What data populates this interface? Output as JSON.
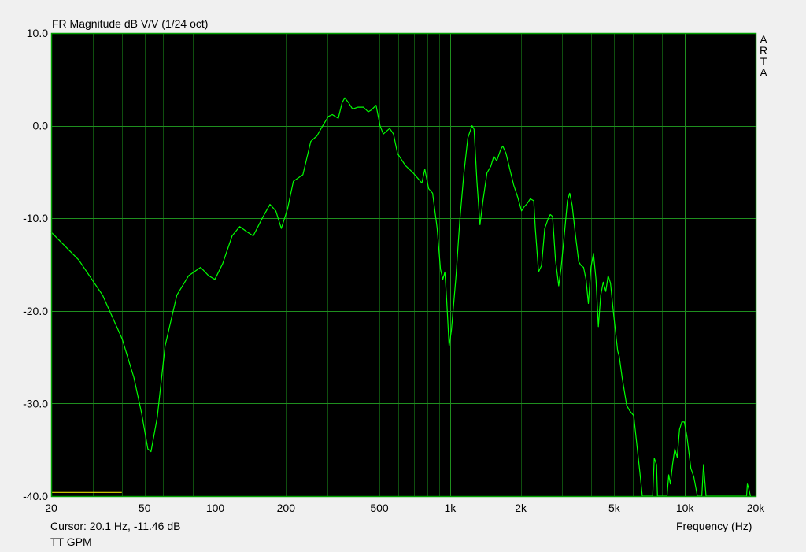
{
  "chart_data": {
    "type": "line",
    "title": "FR Magnitude dB V/V (1/24 oct)",
    "xlabel": "Frequency (Hz)",
    "ylabel": "",
    "xscale": "log",
    "xlim": [
      20,
      20000
    ],
    "ylim": [
      -40,
      10
    ],
    "grid": true,
    "yticks": [
      10,
      0,
      -10,
      -20,
      -30,
      -40
    ],
    "ytick_labels": [
      "10.0",
      "0.0",
      "-10.0",
      "-20.0",
      "-30.0",
      "-40.0"
    ],
    "xticks": [
      20,
      50,
      100,
      200,
      500,
      1000,
      2000,
      5000,
      10000,
      20000
    ],
    "xtick_labels": [
      "20",
      "50",
      "100",
      "200",
      "500",
      "1k",
      "2k",
      "5k",
      "10k",
      "20k"
    ],
    "watermark": "ARTA",
    "colors": {
      "background": "#000000",
      "grid_major": "#1f8f1f",
      "grid_minor": "#0f4f0f",
      "border": "#00a000",
      "trace": "#00ff00",
      "reference": "#e0e000"
    },
    "series": [
      {
        "color": "#00ff00",
        "points": [
          [
            20,
            -11.5
          ],
          [
            26.2,
            -14.5
          ],
          [
            33.1,
            -18.3
          ],
          [
            40.1,
            -23.0
          ],
          [
            45,
            -27.2
          ],
          [
            48.6,
            -31.1
          ],
          [
            51.6,
            -34.9
          ],
          [
            53.2,
            -35.2
          ],
          [
            56.6,
            -31.5
          ],
          [
            61.1,
            -23.8
          ],
          [
            68.6,
            -18.3
          ],
          [
            77,
            -16.2
          ],
          [
            86.6,
            -15.3
          ],
          [
            93.6,
            -16.2
          ],
          [
            99.6,
            -16.6
          ],
          [
            107.5,
            -14.9
          ],
          [
            117.9,
            -11.9
          ],
          [
            127,
            -10.9
          ],
          [
            137,
            -11.5
          ],
          [
            145,
            -11.9
          ],
          [
            160,
            -9.8
          ],
          [
            171,
            -8.5
          ],
          [
            181,
            -9.2
          ],
          [
            191,
            -11.1
          ],
          [
            203,
            -9.0
          ],
          [
            215,
            -6.0
          ],
          [
            236,
            -5.3
          ],
          [
            255,
            -1.7
          ],
          [
            271,
            -1.1
          ],
          [
            287,
            0.0
          ],
          [
            303,
            1.0
          ],
          [
            315,
            1.2
          ],
          [
            334,
            0.8
          ],
          [
            347,
            2.5
          ],
          [
            356,
            3.0
          ],
          [
            369,
            2.5
          ],
          [
            384,
            1.8
          ],
          [
            405,
            2.0
          ],
          [
            427,
            2.0
          ],
          [
            448,
            1.5
          ],
          [
            462,
            1.7
          ],
          [
            484,
            2.2
          ],
          [
            503,
            0.0
          ],
          [
            519,
            -0.9
          ],
          [
            553,
            -0.3
          ],
          [
            574,
            -0.9
          ],
          [
            597,
            -3.0
          ],
          [
            645,
            -4.3
          ],
          [
            696,
            -5.1
          ],
          [
            724,
            -5.6
          ],
          [
            758,
            -6.2
          ],
          [
            780,
            -4.7
          ],
          [
            810,
            -6.8
          ],
          [
            842,
            -7.3
          ],
          [
            881,
            -11.1
          ],
          [
            910,
            -15.5
          ],
          [
            931,
            -16.6
          ],
          [
            950,
            -15.8
          ],
          [
            966,
            -18.7
          ],
          [
            990,
            -23.8
          ],
          [
            1013,
            -22.1
          ],
          [
            1060,
            -16.2
          ],
          [
            1100,
            -10.2
          ],
          [
            1145,
            -5.1
          ],
          [
            1190,
            -1.3
          ],
          [
            1240,
            0.0
          ],
          [
            1265,
            -0.4
          ],
          [
            1300,
            -6.0
          ],
          [
            1340,
            -10.7
          ],
          [
            1380,
            -8.1
          ],
          [
            1435,
            -5.1
          ],
          [
            1490,
            -4.4
          ],
          [
            1535,
            -3.3
          ],
          [
            1580,
            -3.8
          ],
          [
            1640,
            -2.6
          ],
          [
            1675,
            -2.2
          ],
          [
            1730,
            -3.0
          ],
          [
            1795,
            -4.7
          ],
          [
            1865,
            -6.4
          ],
          [
            1940,
            -7.7
          ],
          [
            2015,
            -9.2
          ],
          [
            2060,
            -8.8
          ],
          [
            2130,
            -8.4
          ],
          [
            2195,
            -7.9
          ],
          [
            2270,
            -8.1
          ],
          [
            2305,
            -11.1
          ],
          [
            2380,
            -15.8
          ],
          [
            2450,
            -15.1
          ],
          [
            2530,
            -11.1
          ],
          [
            2610,
            -10.1
          ],
          [
            2670,
            -9.6
          ],
          [
            2730,
            -9.8
          ],
          [
            2810,
            -14.5
          ],
          [
            2900,
            -17.3
          ],
          [
            2970,
            -15.3
          ],
          [
            3060,
            -11.9
          ],
          [
            3160,
            -8.1
          ],
          [
            3230,
            -7.3
          ],
          [
            3310,
            -8.6
          ],
          [
            3420,
            -11.9
          ],
          [
            3530,
            -14.7
          ],
          [
            3610,
            -15.1
          ],
          [
            3700,
            -15.3
          ],
          [
            3790,
            -16.6
          ],
          [
            3880,
            -19.2
          ],
          [
            3980,
            -15.3
          ],
          [
            4080,
            -13.8
          ],
          [
            4180,
            -16.6
          ],
          [
            4280,
            -21.7
          ],
          [
            4380,
            -18.3
          ],
          [
            4490,
            -16.9
          ],
          [
            4600,
            -17.9
          ],
          [
            4710,
            -16.2
          ],
          [
            4820,
            -17.0
          ],
          [
            4970,
            -20.4
          ],
          [
            5170,
            -24.3
          ],
          [
            5250,
            -24.9
          ],
          [
            5400,
            -27.2
          ],
          [
            5650,
            -30.2
          ],
          [
            5820,
            -30.8
          ],
          [
            6050,
            -31.3
          ],
          [
            6190,
            -33.6
          ],
          [
            6430,
            -37.5
          ],
          [
            6580,
            -40
          ],
          [
            7290,
            -40
          ],
          [
            7400,
            -35.9
          ],
          [
            7570,
            -36.6
          ],
          [
            7640,
            -40
          ],
          [
            8390,
            -40
          ],
          [
            8530,
            -37.7
          ],
          [
            8660,
            -38.7
          ],
          [
            8850,
            -36.6
          ],
          [
            9050,
            -34.9
          ],
          [
            9270,
            -35.8
          ],
          [
            9480,
            -32.8
          ],
          [
            9700,
            -32.0
          ],
          [
            9950,
            -32.0
          ],
          [
            10200,
            -33.6
          ],
          [
            10600,
            -37.0
          ],
          [
            10900,
            -37.9
          ],
          [
            11300,
            -40
          ],
          [
            11800,
            -40
          ],
          [
            12000,
            -36.6
          ],
          [
            12300,
            -40
          ],
          [
            18300,
            -40
          ],
          [
            18450,
            -38.7
          ],
          [
            18700,
            -39.2
          ],
          [
            19000,
            -40
          ]
        ]
      },
      {
        "color": "#e0e000",
        "points": [
          [
            20,
            -39.6
          ],
          [
            40,
            -39.6
          ]
        ]
      }
    ]
  },
  "footer": {
    "cursor": "Cursor: 20.1 Hz, -11.46 dB",
    "trace_name": "TT GPM"
  }
}
